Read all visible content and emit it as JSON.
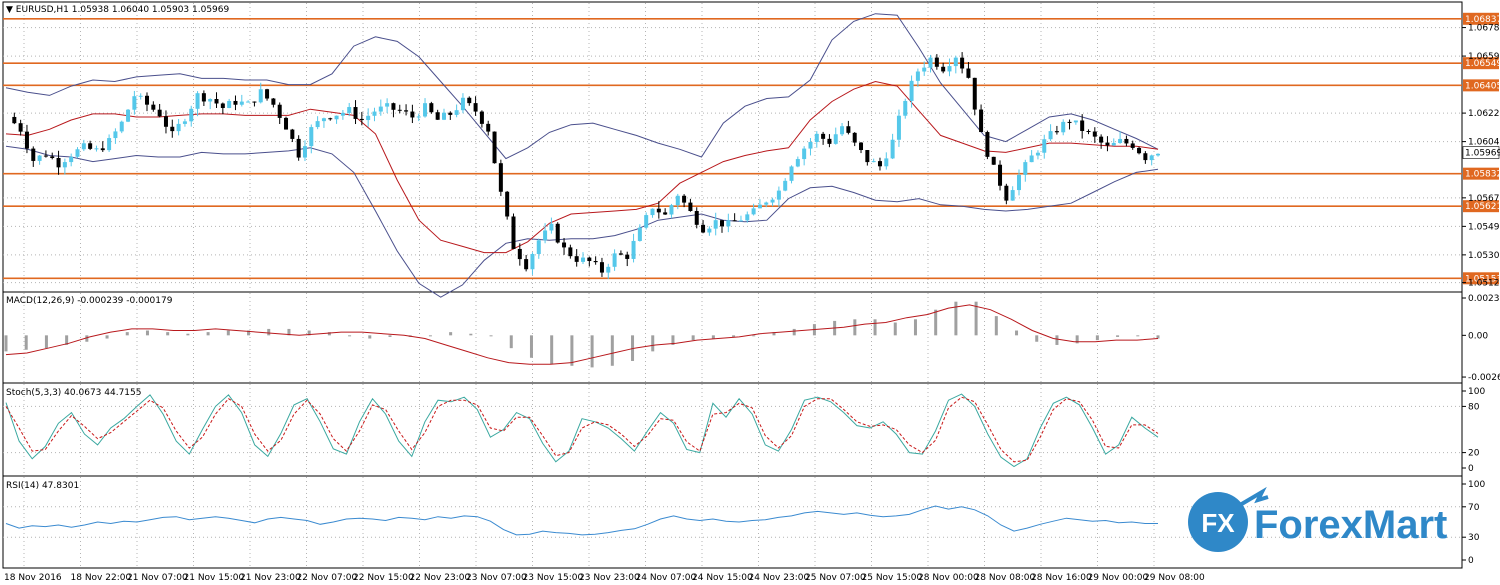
{
  "chart_data": {
    "type": "candlestick",
    "symbol_header": "EURUSD,H1  1.05938 1.06040 1.05903 1.05969",
    "current_price": "1.05969",
    "colors": {
      "bull": "#55c8ea",
      "bear": "#000000",
      "level": "#e06820",
      "bands": "#4a4f8c",
      "ma": "#b8181c",
      "stoch_main": "#3aa8a0",
      "stoch_signal": "#c81818",
      "rsi": "#3a8ad0",
      "hist": "#a0a0a0",
      "grid": "#b4b4b4"
    },
    "price_axis": {
      "min": 1.0509,
      "max": 1.0692,
      "ticks": [
        "1.06780",
        "1.06595",
        "1.06225",
        "1.06040",
        "1.05675",
        "1.05490",
        "1.05305",
        "1.05125"
      ]
    },
    "levels": [
      {
        "price": 1.06837,
        "label": "1.06837"
      },
      {
        "price": 1.06549,
        "label": "1.06549"
      },
      {
        "price": 1.06405,
        "label": "1.06405"
      },
      {
        "price": 1.05832,
        "label": "1.05832"
      },
      {
        "price": 1.05621,
        "label": "1.05621"
      },
      {
        "price": 1.05153,
        "label": "1.05153"
      }
    ],
    "x_labels": [
      "18 Nov 2016",
      "18 Nov 22:00",
      "21 Nov 07:00",
      "21 Nov 15:00",
      "21 Nov 23:00",
      "22 Nov 07:00",
      "22 Nov 15:00",
      "22 Nov 23:00",
      "23 Nov 07:00",
      "23 Nov 15:00",
      "23 Nov 23:00",
      "24 Nov 07:00",
      "24 Nov 15:00",
      "24 Nov 23:00",
      "25 Nov 07:00",
      "25 Nov 15:00",
      "28 Nov 00:00",
      "28 Nov 08:00",
      "28 Nov 16:00",
      "29 Nov 00:00",
      "29 Nov 08:00"
    ],
    "close_path": [
      1.062,
      1.0612,
      1.0592,
      1.0596,
      1.059,
      1.0596,
      1.06,
      1.0598,
      1.0604,
      1.0616,
      1.0634,
      1.0628,
      1.0622,
      1.0608,
      1.062,
      1.0634,
      1.0632,
      1.0626,
      1.063,
      1.0628,
      1.0636,
      1.0628,
      1.0614,
      1.0596,
      1.0612,
      1.062,
      1.0622,
      1.0624,
      1.0618,
      1.0624,
      1.0626,
      1.0624,
      1.062,
      1.0626,
      1.0618,
      1.0622,
      1.063,
      1.0624,
      1.0612,
      1.057,
      1.0536,
      1.0524,
      1.054,
      1.0548,
      1.0534,
      1.0528,
      1.0526,
      1.052,
      1.053,
      1.053,
      1.0546,
      1.0562,
      1.0556,
      1.057,
      1.0558,
      1.0548,
      1.0552,
      1.055,
      1.0554,
      1.0558,
      1.0566,
      1.0572,
      1.059,
      1.06,
      1.0608,
      1.0604,
      1.0614,
      1.0602,
      1.0592,
      1.0588,
      1.0604,
      1.0632,
      1.065,
      1.0658,
      1.0652,
      1.066,
      1.0646,
      1.0608,
      1.0586,
      1.0568,
      1.0582,
      1.0594,
      1.0604,
      1.0612,
      1.0618,
      1.0612,
      1.0606,
      1.06,
      1.0604,
      1.0602,
      1.0594,
      1.0598
    ],
    "bb_upper": [
      1.0639,
      1.0636,
      1.0634,
      1.064,
      1.0644,
      1.0643,
      1.0646,
      1.0647,
      1.0648,
      1.0645,
      1.0645,
      1.0644,
      1.0644,
      1.0641,
      1.0641,
      1.0648,
      1.0666,
      1.0672,
      1.0669,
      1.0659,
      1.0643,
      1.0627,
      1.061,
      1.0593,
      1.06,
      1.061,
      1.0615,
      1.0616,
      1.0612,
      1.0608,
      1.0603,
      1.0599,
      1.0594,
      1.0616,
      1.0627,
      1.0632,
      1.0633,
      1.0644,
      1.067,
      1.0682,
      1.0687,
      1.0686,
      1.0665,
      1.0642,
      1.0625,
      1.0608,
      1.0604,
      1.0612,
      1.062,
      1.0622,
      1.0618,
      1.0612,
      1.0606,
      1.0599
    ],
    "bb_lower": [
      1.0601,
      1.0599,
      1.0595,
      1.0594,
      1.0591,
      1.0593,
      1.0595,
      1.0594,
      1.0594,
      1.0597,
      1.0596,
      1.0596,
      1.0597,
      1.0598,
      1.06,
      1.0596,
      1.0584,
      1.0559,
      1.0533,
      1.0512,
      1.0503,
      1.0511,
      1.0527,
      1.0538,
      1.0541,
      1.054,
      1.0541,
      1.0541,
      1.0543,
      1.0547,
      1.0553,
      1.0555,
      1.0557,
      1.0553,
      1.0552,
      1.0553,
      1.0567,
      1.0574,
      1.0575,
      1.0571,
      1.0566,
      1.0565,
      1.0567,
      1.0563,
      1.0562,
      1.056,
      1.0559,
      1.056,
      1.0562,
      1.0564,
      1.0571,
      1.0578,
      1.0584,
      1.0586
    ],
    "bb_middle": [
      1.0609,
      1.0608,
      1.0612,
      1.0618,
      1.0622,
      1.0622,
      1.062,
      1.062,
      1.0621,
      1.0622,
      1.0622,
      1.0621,
      1.0621,
      1.0621,
      1.0625,
      1.0623,
      1.0621,
      1.0609,
      1.0579,
      1.0553,
      1.054,
      1.0536,
      1.0532,
      1.0532,
      1.0539,
      1.0551,
      1.0557,
      1.0558,
      1.0559,
      1.056,
      1.0564,
      1.0577,
      1.0584,
      1.0591,
      1.0595,
      1.0598,
      1.06,
      1.0618,
      1.063,
      1.0638,
      1.0643,
      1.064,
      1.0624,
      1.0608,
      1.0603,
      1.0598,
      1.0597,
      1.06,
      1.0603,
      1.0603,
      1.0602,
      1.0601,
      1.0601,
      1.0599
    ],
    "macd": {
      "label": "MACD(12,26,9) -0.000239 -0.000179",
      "ticks": [
        "0.00233",
        "0.00",
        "-0.002603"
      ],
      "min": -0.0026,
      "max": 0.00233,
      "hist": [
        -0.001,
        -0.0009,
        -0.0008,
        -0.0006,
        -0.0004,
        -0.0002,
        0.0002,
        0.0003,
        0.0002,
        0.0001,
        0.0002,
        0.0003,
        0.0003,
        0.0004,
        0.0004,
        0.0003,
        0.0002,
        0.0,
        -0.0002,
        -0.0001,
        -0.0001,
        0.0,
        0.0002,
        0.0001,
        0.0,
        -0.0008,
        -0.0014,
        -0.0018,
        -0.0019,
        -0.002,
        -0.0019,
        -0.0016,
        -0.001,
        -0.0006,
        -0.0003,
        -0.0002,
        -0.0001,
        0.0,
        0.0002,
        0.0004,
        0.0007,
        0.0009,
        0.001,
        0.001,
        0.0008,
        0.001,
        0.0016,
        0.0021,
        0.0021,
        0.0012,
        0.0003,
        -0.0004,
        -0.0006,
        -0.0005,
        -0.0003,
        -0.0001,
        0.0,
        -0.0002
      ],
      "signal": [
        -0.0012,
        -0.0011,
        -0.0008,
        -0.0005,
        -0.0001,
        0.0002,
        0.0004,
        0.0004,
        0.0003,
        0.0003,
        0.0004,
        0.0003,
        0.0002,
        0.0001,
        0.0,
        0.0001,
        0.0002,
        0.0002,
        0.0001,
        0.0,
        -0.0002,
        -0.0006,
        -0.001,
        -0.0014,
        -0.0017,
        -0.0018,
        -0.0018,
        -0.0017,
        -0.0014,
        -0.0011,
        -0.0008,
        -0.0006,
        -0.0005,
        -0.0003,
        -0.0002,
        -0.0001,
        0.0001,
        0.0002,
        0.0003,
        0.0004,
        0.0005,
        0.0007,
        0.0008,
        0.0011,
        0.0013,
        0.0017,
        0.0019,
        0.0016,
        0.001,
        0.0003,
        -0.0002,
        -0.0004,
        -0.0004,
        -0.0003,
        -0.0003,
        -0.0002
      ]
    },
    "stoch": {
      "label": "Stoch(5,3,3) 40.0673 44.7155",
      "ticks": [
        "100",
        "80",
        "20",
        "0"
      ],
      "main": [
        85,
        35,
        12,
        28,
        58,
        72,
        44,
        30,
        52,
        64,
        80,
        95,
        70,
        35,
        18,
        50,
        80,
        95,
        72,
        30,
        15,
        45,
        82,
        90,
        60,
        25,
        18,
        60,
        90,
        70,
        35,
        15,
        60,
        88,
        86,
        92,
        76,
        40,
        50,
        72,
        64,
        32,
        8,
        22,
        64,
        60,
        52,
        38,
        22,
        48,
        72,
        58,
        24,
        20,
        84,
        66,
        90,
        70,
        30,
        22,
        50,
        88,
        92,
        86,
        72,
        55,
        52,
        60,
        44,
        20,
        18,
        48,
        88,
        96,
        80,
        44,
        14,
        2,
        12,
        52,
        84,
        92,
        82,
        52,
        18,
        30,
        66,
        52,
        40
      ],
      "signal": [
        80,
        52,
        22,
        24,
        48,
        68,
        54,
        38,
        46,
        60,
        74,
        88,
        78,
        48,
        26,
        40,
        70,
        90,
        80,
        44,
        22,
        36,
        70,
        88,
        70,
        38,
        22,
        48,
        82,
        76,
        48,
        24,
        46,
        80,
        88,
        88,
        82,
        52,
        48,
        66,
        66,
        42,
        16,
        20,
        52,
        60,
        56,
        44,
        28,
        42,
        64,
        62,
        34,
        22,
        70,
        72,
        84,
        78,
        42,
        26,
        42,
        80,
        90,
        90,
        76,
        60,
        54,
        56,
        50,
        30,
        20,
        36,
        78,
        92,
        86,
        56,
        24,
        8,
        10,
        40,
        76,
        90,
        86,
        62,
        28,
        26,
        56,
        56,
        45
      ]
    },
    "rsi": {
      "label": "RSI(14) 47.8301",
      "ticks": [
        "100",
        "70",
        "30",
        "0"
      ],
      "values": [
        48,
        42,
        45,
        44,
        46,
        43,
        46,
        50,
        48,
        51,
        50,
        53,
        56,
        57,
        53,
        55,
        57,
        55,
        52,
        49,
        54,
        56,
        54,
        52,
        47,
        50,
        54,
        55,
        54,
        52,
        56,
        55,
        53,
        57,
        55,
        58,
        57,
        51,
        40,
        33,
        34,
        38,
        36,
        35,
        33,
        34,
        36,
        39,
        41,
        47,
        54,
        58,
        54,
        52,
        54,
        51,
        50,
        52,
        53,
        56,
        58,
        62,
        64,
        62,
        60,
        62,
        59,
        57,
        58,
        60,
        66,
        71,
        67,
        70,
        66,
        58,
        46,
        38,
        42,
        47,
        51,
        55,
        53,
        51,
        52,
        49,
        50,
        48,
        48
      ]
    },
    "brand": {
      "text": "ForexMart",
      "mark": "FX"
    }
  }
}
